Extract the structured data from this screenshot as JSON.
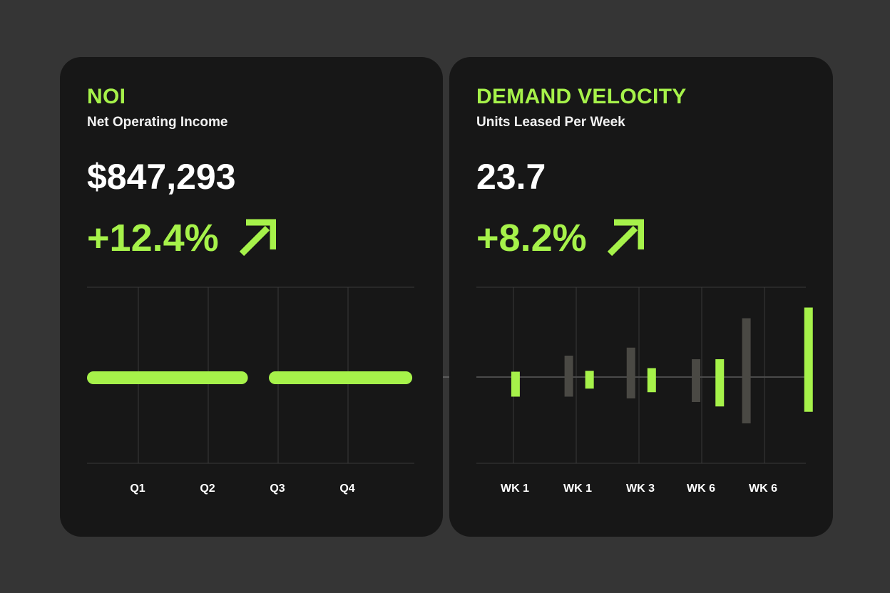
{
  "colors": {
    "accent": "#a6f24a",
    "background": "#353535",
    "card": "#171717",
    "grid": "#3a3a3a",
    "ghost_bar": "#4a4944",
    "text": "#ffffff"
  },
  "noi": {
    "title": "NOI",
    "subtitle": "Net Operating Income",
    "value": "$847,293",
    "change": "+12.4%",
    "change_icon": "arrow-up-right-icon",
    "chart_data": {
      "type": "bar",
      "orientation": "horizontal-segments",
      "categories": [
        "Q1",
        "Q2",
        "Q3",
        "Q4"
      ],
      "segments": [
        {
          "x_start": 0.0,
          "x_end": 2.3
        },
        {
          "x_start": 2.6,
          "x_end": 4.65
        }
      ],
      "xlim": [
        0,
        4.7
      ],
      "grid": true
    }
  },
  "demand": {
    "title": "DEMAND VELOCITY",
    "subtitle": "Units Leased Per Week",
    "value": "23.7",
    "change": "+8.2%",
    "change_icon": "arrow-up-right-icon",
    "chart_data": {
      "type": "bar",
      "orientation": "floating-vertical",
      "categories": [
        "WK 1",
        "WK 1",
        "WK 3",
        "WK 6",
        "WK 6"
      ],
      "baseline": 0,
      "ylim": [
        -1,
        1
      ],
      "series": [
        {
          "role": "accent",
          "bars": [
            {
              "x": 0.3,
              "low": -0.22,
              "high": 0.06
            },
            {
              "x": 1.55,
              "low": -0.13,
              "high": 0.07
            },
            {
              "x": 2.6,
              "low": -0.17,
              "high": 0.1
            },
            {
              "x": 3.75,
              "low": -0.33,
              "high": 0.2
            },
            {
              "x": 5.25,
              "low": -0.39,
              "high": 0.78
            }
          ]
        },
        {
          "role": "ghost",
          "bars": [
            {
              "x": 1.2,
              "low": -0.22,
              "high": 0.24
            },
            {
              "x": 2.25,
              "low": -0.24,
              "high": 0.33
            },
            {
              "x": 3.35,
              "low": -0.28,
              "high": 0.2
            },
            {
              "x": 4.2,
              "low": -0.52,
              "high": 0.66
            }
          ]
        }
      ],
      "grid": true
    }
  }
}
